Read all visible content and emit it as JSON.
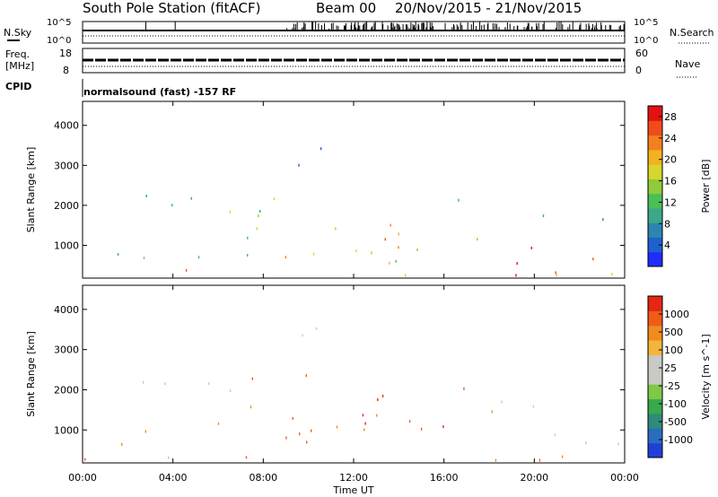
{
  "header": {
    "station": "South Pole Station (fitACF)",
    "beam": "Beam 00",
    "date_range": "20/Nov/2015 - 21/Nov/2015"
  },
  "strip_labels": {
    "nsky": "N.Sky",
    "nsearch": "N.Search",
    "freq_line1": "Freq.",
    "freq_line2": "[MHz]",
    "nave": "Nave",
    "cpid": "CPID",
    "cpid_value": "normalsound (fast) -157 RF",
    "noise_ticks_left": [
      "10^5",
      "10^0"
    ],
    "noise_ticks_right": [
      "10^5",
      "10^0"
    ],
    "freq_ticks_left": [
      "18",
      "8"
    ],
    "nave_ticks_right": [
      "60",
      "0"
    ]
  },
  "chart_data": [
    {
      "type": "heatmap",
      "name": "power",
      "ylabel": "Slant Range [km]",
      "xlabel": "Time UT",
      "x_ticks": [
        "00:00",
        "04:00",
        "08:00",
        "12:00",
        "16:00",
        "20:00",
        "00:00"
      ],
      "xlim_hours": [
        0,
        24
      ],
      "y_ticks": [
        1000,
        2000,
        3000,
        4000
      ],
      "ylim": [
        180,
        4600
      ],
      "colorbar": {
        "label": "Power [dB]",
        "ticks": [
          "4",
          "8",
          "12",
          "16",
          "20",
          "24",
          "28"
        ],
        "colors": [
          "#1e2cff",
          "#1f5fd0",
          "#2a86b0",
          "#3aa889",
          "#4bbf58",
          "#8fcb3a",
          "#d8d62c",
          "#f3b21f",
          "#f3801c",
          "#ef4c1a",
          "#e31212"
        ]
      }
    },
    {
      "type": "heatmap",
      "name": "velocity",
      "ylabel": "Slant Range [km]",
      "xlabel": "Time UT",
      "x_ticks": [
        "00:00",
        "04:00",
        "08:00",
        "12:00",
        "16:00",
        "20:00",
        "00:00"
      ],
      "xlim_hours": [
        0,
        24
      ],
      "y_ticks": [
        1000,
        2000,
        3000,
        4000
      ],
      "ylim": [
        180,
        4600
      ],
      "colorbar": {
        "label": "Velocity [m s^-1]",
        "ticks": [
          "1000",
          "500",
          "100",
          "25",
          "-25",
          "-100",
          "-500",
          "-1000"
        ],
        "colors": [
          "#1f3fd6",
          "#2a6cc0",
          "#2f8a7a",
          "#38a94d",
          "#7ec947",
          "#c9c9c5",
          "#c9c9c5",
          "#f3b53a",
          "#f08b1d",
          "#ef5d18",
          "#e42612"
        ]
      }
    }
  ]
}
